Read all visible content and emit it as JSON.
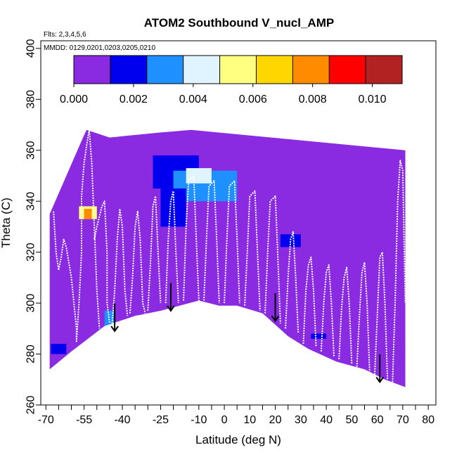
{
  "chart_data": {
    "type": "heatmap",
    "title": "ATOM2 Southbound V_nucl_AMP",
    "flights_label": "Flts: 2,3,4,5,6",
    "dates_label": "MMDD: 0129,0201,0203,0205,0210",
    "xlabel": "Latitude (deg N)",
    "ylabel": "Theta (C)",
    "xlim": [
      -72,
      83
    ],
    "ylim": [
      260,
      403
    ],
    "x_ticks": [
      -70,
      -55,
      -40,
      -25,
      -10,
      0,
      10,
      20,
      30,
      40,
      50,
      60,
      70,
      80
    ],
    "x_minor_ticks": [
      -65,
      -60,
      -50,
      -45,
      -35,
      -30,
      -20,
      -15,
      -5,
      5,
      15,
      25,
      35,
      45,
      55,
      65,
      75
    ],
    "y_ticks": [
      260,
      280,
      300,
      320,
      340,
      360,
      380,
      400
    ],
    "colorbar": {
      "min": 0.0,
      "max": 0.011,
      "ticks": [
        0.0,
        0.002,
        0.004,
        0.006,
        0.008,
        0.01
      ],
      "tick_labels": [
        "0.000",
        "0.002",
        "0.004",
        "0.006",
        "0.008",
        "0.010"
      ],
      "colors": [
        "#8a2be2",
        "#0000ee",
        "#1e90ff",
        "#e0f4ff",
        "#ffff80",
        "#ffd700",
        "#ff8c00",
        "#ff0000",
        "#b22222"
      ]
    },
    "field_outline": [
      [
        -68.5,
        335
      ],
      [
        -68.5,
        274
      ],
      [
        -60,
        281
      ],
      [
        -47,
        291
      ],
      [
        -35,
        295
      ],
      [
        -25,
        297
      ],
      [
        -10,
        301
      ],
      [
        -2,
        299
      ],
      [
        5,
        299
      ],
      [
        15,
        296
      ],
      [
        25,
        287
      ],
      [
        33,
        282
      ],
      [
        44,
        277
      ],
      [
        55,
        274
      ],
      [
        63,
        270
      ],
      [
        71,
        267
      ],
      [
        71,
        360
      ],
      [
        -13,
        368
      ],
      [
        -25,
        367
      ],
      [
        -45,
        365
      ],
      [
        -54,
        368
      ],
      [
        -55,
        366
      ]
    ],
    "background_value": 0.0002,
    "patches": [
      {
        "lat": [
          -40,
          -5
        ],
        "theta": [
          353,
          366
        ],
        "value": 0.0009
      },
      {
        "lat": [
          -28,
          -10
        ],
        "theta": [
          345,
          358
        ],
        "value": 0.0022
      },
      {
        "lat": [
          -20,
          5
        ],
        "theta": [
          340,
          352
        ],
        "value": 0.0032
      },
      {
        "lat": [
          -15,
          -5
        ],
        "theta": [
          347,
          353
        ],
        "value": 0.004
      },
      {
        "lat": [
          -25,
          -15
        ],
        "theta": [
          330,
          345
        ],
        "value": 0.0015
      },
      {
        "lat": [
          -57,
          -50
        ],
        "theta": [
          333,
          338
        ],
        "value": 0.006
      },
      {
        "lat": [
          -55,
          -52
        ],
        "theta": [
          333,
          337
        ],
        "value": 0.0082
      },
      {
        "lat": [
          -47,
          -43
        ],
        "theta": [
          289,
          297
        ],
        "value": 0.0035
      },
      {
        "lat": [
          -68,
          -60
        ],
        "theta": [
          315,
          320
        ],
        "value": 0.0012
      },
      {
        "lat": [
          -68,
          -62
        ],
        "theta": [
          280,
          284
        ],
        "value": 0.0016
      },
      {
        "lat": [
          -68,
          -62
        ],
        "theta": [
          288,
          290
        ],
        "value": 0.0011
      },
      {
        "lat": [
          22,
          30
        ],
        "theta": [
          322,
          327
        ],
        "value": 0.0018
      },
      {
        "lat": [
          40,
          60
        ],
        "theta": [
          320,
          324
        ],
        "value": 0.001
      },
      {
        "lat": [
          55,
          70
        ],
        "theta": [
          353,
          360
        ],
        "value": 0.0008
      },
      {
        "lat": [
          34,
          40
        ],
        "theta": [
          286,
          288
        ],
        "value": 0.0014
      }
    ],
    "profiles": [
      [
        [
          -67,
          336
        ],
        [
          -66,
          320
        ],
        [
          -65,
          313
        ],
        [
          -64,
          318
        ],
        [
          -63,
          325
        ],
        [
          -62,
          322
        ],
        [
          -60,
          310
        ],
        [
          -59,
          300
        ],
        [
          -58,
          290
        ],
        [
          -58,
          285
        ],
        [
          -57,
          300
        ],
        [
          -56,
          320
        ],
        [
          -56,
          342
        ],
        [
          -55,
          355
        ],
        [
          -54,
          362
        ],
        [
          -53,
          368
        ],
        [
          -52,
          355
        ],
        [
          -51,
          330
        ],
        [
          -50,
          305
        ],
        [
          -49,
          290
        ]
      ],
      [
        [
          -51,
          325
        ],
        [
          -50,
          330
        ],
        [
          -48,
          338
        ],
        [
          -47,
          340
        ],
        [
          -46,
          320
        ],
        [
          -46,
          300
        ],
        [
          -45,
          292
        ]
      ],
      [
        [
          -44,
          292
        ],
        [
          -43,
          305
        ],
        [
          -42,
          325
        ],
        [
          -41,
          337
        ],
        [
          -40,
          330
        ],
        [
          -39,
          305
        ],
        [
          -38,
          295
        ]
      ],
      [
        [
          -37,
          296
        ],
        [
          -36,
          310
        ],
        [
          -35,
          330
        ],
        [
          -34,
          336
        ],
        [
          -33,
          325
        ],
        [
          -32,
          300
        ],
        [
          -31,
          296
        ]
      ],
      [
        [
          -30,
          297
        ],
        [
          -29,
          315
        ],
        [
          -28,
          338
        ],
        [
          -27,
          342
        ],
        [
          -26,
          320
        ],
        [
          -25,
          300
        ]
      ],
      [
        [
          -23,
          300
        ],
        [
          -22,
          325
        ],
        [
          -21,
          340
        ],
        [
          -20,
          344
        ],
        [
          -19,
          320
        ],
        [
          -18,
          300
        ]
      ],
      [
        [
          -16,
          301
        ],
        [
          -15,
          330
        ],
        [
          -14,
          348
        ],
        [
          -12,
          350
        ],
        [
          -11,
          325
        ],
        [
          -10,
          301
        ]
      ],
      [
        [
          -8,
          301
        ],
        [
          -7,
          325
        ],
        [
          -6,
          346
        ],
        [
          -4,
          348
        ],
        [
          -3,
          325
        ],
        [
          -2,
          300
        ]
      ],
      [
        [
          0,
          300
        ],
        [
          1,
          325
        ],
        [
          2,
          346
        ],
        [
          4,
          348
        ],
        [
          5,
          325
        ],
        [
          6,
          300
        ]
      ],
      [
        [
          8,
          299
        ],
        [
          9,
          320
        ],
        [
          10,
          342
        ],
        [
          12,
          344
        ],
        [
          13,
          320
        ],
        [
          14,
          297
        ]
      ],
      [
        [
          16,
          296
        ],
        [
          17,
          320
        ],
        [
          18,
          340
        ],
        [
          20,
          342
        ],
        [
          21,
          318
        ],
        [
          22,
          292
        ]
      ],
      [
        [
          24,
          290
        ],
        [
          25,
          310
        ],
        [
          26,
          325
        ],
        [
          27,
          328
        ],
        [
          28,
          310
        ],
        [
          29,
          288
        ]
      ],
      [
        [
          31,
          284
        ],
        [
          32,
          305
        ],
        [
          33,
          315
        ],
        [
          34,
          318
        ],
        [
          35,
          305
        ],
        [
          36,
          283
        ]
      ],
      [
        [
          38,
          281
        ],
        [
          39,
          300
        ],
        [
          40,
          312
        ],
        [
          41,
          315
        ],
        [
          42,
          300
        ],
        [
          43,
          279
        ]
      ],
      [
        [
          45,
          278
        ],
        [
          46,
          298
        ],
        [
          47,
          310
        ],
        [
          48,
          314
        ],
        [
          49,
          300
        ],
        [
          50,
          276
        ]
      ],
      [
        [
          52,
          275
        ],
        [
          53,
          295
        ],
        [
          54,
          312
        ],
        [
          55,
          316
        ],
        [
          56,
          300
        ],
        [
          57,
          273
        ]
      ],
      [
        [
          59,
          272
        ],
        [
          60,
          295
        ],
        [
          61,
          318
        ],
        [
          62,
          320
        ],
        [
          63,
          300
        ],
        [
          64,
          270
        ]
      ],
      [
        [
          66,
          269
        ],
        [
          67,
          300
        ],
        [
          68,
          340
        ],
        [
          69,
          356
        ],
        [
          70,
          352
        ],
        [
          71,
          300
        ]
      ]
    ],
    "arrows": [
      {
        "lat": -43,
        "theta_top": 296,
        "theta_tip": 289
      },
      {
        "lat": -21,
        "theta_top": 304,
        "theta_tip": 297
      },
      {
        "lat": 20,
        "theta_top": 300,
        "theta_tip": 293
      },
      {
        "lat": 61,
        "theta_top": 276,
        "theta_tip": 269
      }
    ]
  }
}
